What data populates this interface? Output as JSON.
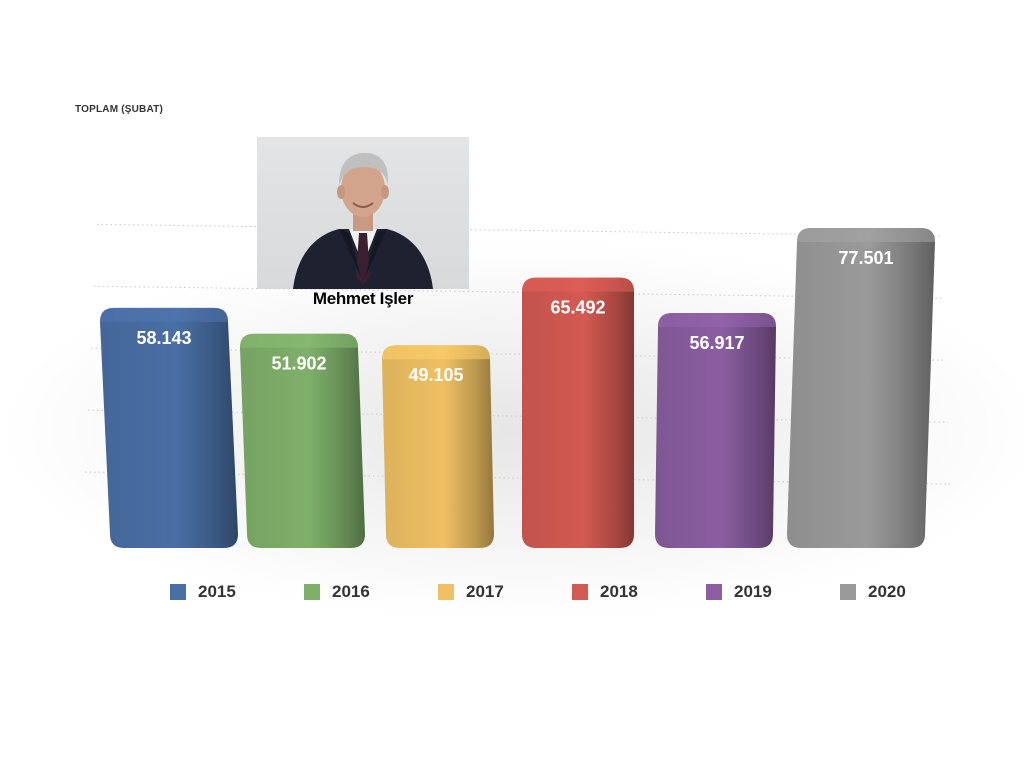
{
  "chart_data": {
    "type": "bar",
    "title": "TOPLAM (ŞUBAT)",
    "categories": [
      "2015",
      "2016",
      "2017",
      "2018",
      "2019",
      "2020"
    ],
    "values": [
      58143,
      51902,
      49105,
      65492,
      56917,
      77501
    ],
    "value_labels": [
      "58.143",
      "51.902",
      "49.105",
      "65.492",
      "56.917",
      "77.501"
    ],
    "colors": [
      "#4a6fa5",
      "#7fb06b",
      "#efc063",
      "#d35a52",
      "#8a5ea1",
      "#9a9a9a"
    ],
    "legend": [
      "2015",
      "2016",
      "2017",
      "2018",
      "2019",
      "2020"
    ],
    "legend_position": "bottom",
    "grid": true,
    "ylim": [
      0,
      90000
    ]
  },
  "photo": {
    "caption": "Mehmet Işler",
    "icon": "portrait-photo"
  }
}
